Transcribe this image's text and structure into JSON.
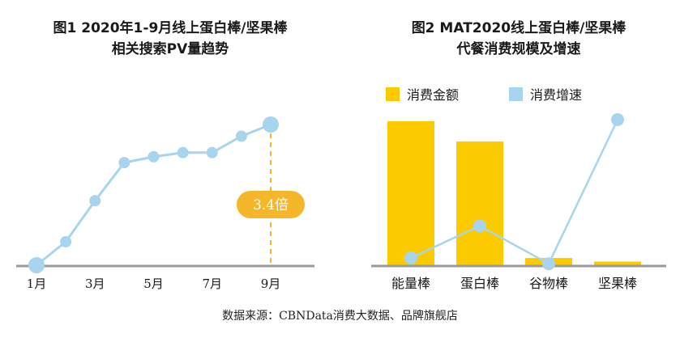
{
  "source": "数据来源：CBNData消费大数据、品牌旗舰店",
  "colors": {
    "yellow": "#FBCB00",
    "blue": "#A8D4EE",
    "axis": "#9a9a9a",
    "badge": "#F5B72A"
  },
  "chart_data": [
    {
      "type": "line",
      "title_line1": "图1 2020年1-9月线上蛋白棒/坚果棒",
      "title_line2": "相关搜索PV量趋势",
      "x": [
        1,
        2,
        3,
        4,
        5,
        6,
        7,
        8,
        9
      ],
      "x_tick_labels": [
        "1月",
        "3月",
        "5月",
        "7月",
        "9月"
      ],
      "x_tick_positions": [
        1,
        3,
        5,
        7,
        9
      ],
      "series": [
        {
          "values": [
            1.0,
            1.4,
            2.1,
            2.75,
            2.85,
            2.92,
            2.92,
            3.2,
            3.4
          ]
        }
      ],
      "ylim": [
        1.0,
        3.4
      ],
      "annotation": "3.4倍",
      "grid": false
    },
    {
      "type": "bar",
      "title_line1": "图2 MAT2020线上蛋白棒/坚果棒",
      "title_line2": "代餐消费规模及增速",
      "categories": [
        "能量棒",
        "蛋白棒",
        "谷物棒",
        "坚果棒"
      ],
      "series": [
        {
          "name": "消费金额",
          "kind": "bar",
          "values": [
            100,
            86,
            5,
            2.5
          ]
        },
        {
          "name": "消费增速",
          "kind": "line",
          "values": [
            5,
            27,
            1,
            100
          ]
        }
      ],
      "ylim": [
        0,
        100
      ],
      "legend": "top",
      "grid": false
    }
  ]
}
